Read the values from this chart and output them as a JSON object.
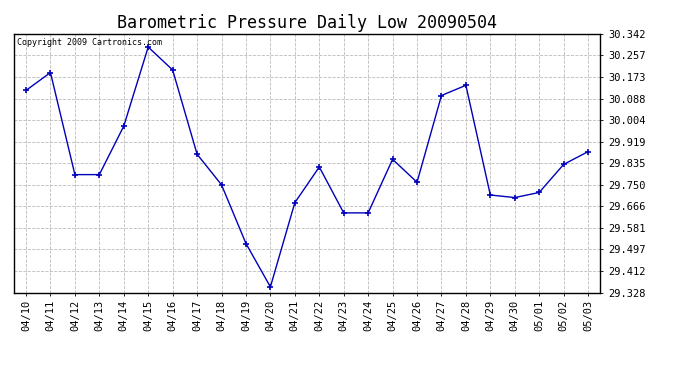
{
  "title": "Barometric Pressure Daily Low 20090504",
  "copyright": "Copyright 2009 Cartronics.com",
  "x_labels": [
    "04/10",
    "04/11",
    "04/12",
    "04/13",
    "04/14",
    "04/15",
    "04/16",
    "04/17",
    "04/18",
    "04/19",
    "04/20",
    "04/21",
    "04/22",
    "04/23",
    "04/24",
    "04/25",
    "04/26",
    "04/27",
    "04/28",
    "04/29",
    "04/30",
    "05/01",
    "05/02",
    "05/03"
  ],
  "y_values": [
    30.12,
    30.19,
    29.79,
    29.79,
    29.98,
    30.29,
    30.2,
    29.87,
    29.75,
    29.52,
    29.35,
    29.68,
    29.82,
    29.64,
    29.64,
    29.85,
    29.76,
    30.1,
    30.14,
    29.71,
    29.7,
    29.72,
    29.83,
    29.88
  ],
  "line_color": "#0000bb",
  "marker": "+",
  "marker_color": "#0000bb",
  "bg_color": "#ffffff",
  "grid_color": "#bbbbbb",
  "y_min": 29.328,
  "y_max": 30.342,
  "y_ticks": [
    29.328,
    29.412,
    29.497,
    29.581,
    29.666,
    29.75,
    29.835,
    29.919,
    30.004,
    30.088,
    30.173,
    30.257,
    30.342
  ],
  "title_fontsize": 12,
  "tick_fontsize": 7.5
}
